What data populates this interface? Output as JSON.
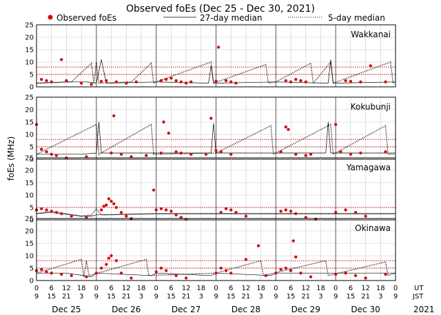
{
  "chart_data": {
    "type": "scatter",
    "title": "Observed foEs (Dec 25 - Dec 30, 2021)",
    "ylabel": "foEs (MHz)",
    "year_label": "2021",
    "time_axis_labels": {
      "ut": "UT",
      "jst": "JST"
    },
    "ylim": [
      0,
      25
    ],
    "yticks": [
      0,
      5,
      10,
      15,
      20,
      25
    ],
    "grid": true,
    "legend": {
      "placement": "top",
      "observed": "Observed foEs",
      "median27": "27-day median",
      "median5": "5-day median"
    },
    "colors": {
      "observed": "#d01010",
      "median27": "#000000",
      "median5": "#000000",
      "grid": "#c8c8c8"
    },
    "days": [
      "Dec 25",
      "Dec 26",
      "Dec 27",
      "Dec 28",
      "Dec 29",
      "Dec 30"
    ],
    "ut_tick_labels": [
      "0",
      "6",
      "12",
      "18",
      "0",
      "6",
      "12",
      "18",
      "0",
      "6",
      "12",
      "18",
      "0",
      "6",
      "12",
      "18",
      "0",
      "6",
      "12",
      "18",
      "0",
      "6",
      "12",
      "18",
      "0"
    ],
    "jst_tick_labels": [
      "9",
      "15",
      "21",
      "3",
      "9",
      "15",
      "21",
      "3",
      "9",
      "15",
      "21",
      "3",
      "9",
      "15",
      "21",
      "3",
      "9",
      "15",
      "21",
      "3",
      "9",
      "15",
      "21",
      "3",
      "9"
    ],
    "stations": [
      {
        "name": "Wakkanai",
        "observed": [
          [
            2,
            3
          ],
          [
            4,
            2.5
          ],
          [
            6,
            2
          ],
          [
            10,
            11
          ],
          [
            12,
            2.5
          ],
          [
            18,
            1.5
          ],
          [
            22,
            1
          ],
          [
            26,
            2.2
          ],
          [
            28,
            2.5
          ],
          [
            32,
            2
          ],
          [
            36,
            1.5
          ],
          [
            40,
            2
          ],
          [
            50,
            2.5
          ],
          [
            52,
            3
          ],
          [
            54,
            3.5
          ],
          [
            56,
            2.5
          ],
          [
            58,
            2
          ],
          [
            60,
            1.5
          ],
          [
            62,
            2
          ],
          [
            72,
            2.3
          ],
          [
            73,
            16
          ],
          [
            76,
            2.5
          ],
          [
            78,
            2
          ],
          [
            80,
            1.5
          ],
          [
            100,
            2.5
          ],
          [
            102,
            2
          ],
          [
            104,
            3
          ],
          [
            106,
            2.5
          ],
          [
            108,
            2
          ],
          [
            124,
            2.5
          ],
          [
            126,
            2.2
          ],
          [
            130,
            2
          ],
          [
            134,
            8.5
          ],
          [
            140,
            2
          ]
        ],
        "median27": [
          [
            0,
            1.5
          ],
          [
            12,
            2
          ],
          [
            20,
            2
          ],
          [
            24,
            1.5
          ],
          [
            26,
            11
          ],
          [
            28,
            1.5
          ],
          [
            48,
            2
          ],
          [
            69,
            1.5
          ],
          [
            70,
            8.5
          ],
          [
            71,
            1.5
          ],
          [
            96,
            2
          ],
          [
            117,
            1.5
          ],
          [
            118,
            11
          ],
          [
            119,
            1.5
          ],
          [
            144,
            2
          ]
        ],
        "median5": [
          [
            0,
            1.5
          ],
          [
            14,
            2
          ],
          [
            22,
            9.5
          ],
          [
            23,
            1.5
          ],
          [
            24,
            10
          ],
          [
            25,
            1.5
          ],
          [
            38,
            2
          ],
          [
            46,
            9.5
          ],
          [
            47,
            1.5
          ],
          [
            48,
            2
          ],
          [
            70,
            10
          ],
          [
            71,
            1.5
          ],
          [
            92,
            9
          ],
          [
            93,
            1.5
          ],
          [
            96,
            2
          ],
          [
            110,
            9.5
          ],
          [
            111,
            1.5
          ],
          [
            118,
            10
          ],
          [
            119,
            1.5
          ],
          [
            142,
            10
          ],
          [
            143,
            1.5
          ],
          [
            144,
            2
          ]
        ],
        "ref_lines": [
          5,
          8
        ]
      },
      {
        "name": "Kokubunji",
        "observed": [
          [
            0,
            14
          ],
          [
            2,
            4
          ],
          [
            4,
            3
          ],
          [
            6,
            2
          ],
          [
            8,
            1.5
          ],
          [
            12,
            0.5
          ],
          [
            20,
            1
          ],
          [
            30,
            2.5
          ],
          [
            31,
            17.5
          ],
          [
            34,
            2
          ],
          [
            38,
            1
          ],
          [
            44,
            1.5
          ],
          [
            50,
            2.5
          ],
          [
            51,
            15
          ],
          [
            53,
            10.5
          ],
          [
            56,
            3
          ],
          [
            58,
            2.5
          ],
          [
            62,
            2
          ],
          [
            68,
            2
          ],
          [
            70,
            16.5
          ],
          [
            72,
            3.5
          ],
          [
            74,
            3
          ],
          [
            78,
            2
          ],
          [
            98,
            3
          ],
          [
            100,
            13
          ],
          [
            101,
            12
          ],
          [
            104,
            2
          ],
          [
            108,
            1.5
          ],
          [
            110,
            2
          ],
          [
            120,
            14
          ],
          [
            122,
            3
          ],
          [
            126,
            2
          ],
          [
            130,
            2.5
          ],
          [
            140,
            3
          ]
        ],
        "median27": [
          [
            0,
            2
          ],
          [
            18,
            2
          ],
          [
            24,
            2.5
          ],
          [
            25,
            15
          ],
          [
            26,
            2.5
          ],
          [
            48,
            2.5
          ],
          [
            70,
            2.5
          ],
          [
            71,
            14.5
          ],
          [
            72,
            2.5
          ],
          [
            96,
            2.5
          ],
          [
            116,
            2.5
          ],
          [
            117,
            15
          ],
          [
            118,
            2.5
          ],
          [
            144,
            2.5
          ]
        ],
        "median5": [
          [
            0,
            2
          ],
          [
            24,
            14
          ],
          [
            25,
            2
          ],
          [
            46,
            14
          ],
          [
            47,
            2
          ],
          [
            72,
            2.5
          ],
          [
            94,
            13.5
          ],
          [
            95,
            2
          ],
          [
            118,
            14
          ],
          [
            119,
            2
          ],
          [
            140,
            13.5
          ],
          [
            141,
            2
          ],
          [
            144,
            2
          ]
        ],
        "ref_lines": [
          5,
          8
        ]
      },
      {
        "name": "Yamagawa",
        "observed": [
          [
            0,
            4
          ],
          [
            2,
            4.5
          ],
          [
            4,
            4
          ],
          [
            6,
            3.5
          ],
          [
            8,
            3
          ],
          [
            10,
            2.5
          ],
          [
            14,
            1.5
          ],
          [
            20,
            1
          ],
          [
            26,
            4
          ],
          [
            27,
            5.5
          ],
          [
            28,
            6
          ],
          [
            29,
            8.5
          ],
          [
            30,
            7.5
          ],
          [
            31,
            6.5
          ],
          [
            32,
            5
          ],
          [
            34,
            3
          ],
          [
            36,
            1.5
          ],
          [
            38,
            0.5
          ],
          [
            48,
            4
          ],
          [
            50,
            4.5
          ],
          [
            52,
            4
          ],
          [
            54,
            3.5
          ],
          [
            56,
            2
          ],
          [
            58,
            1
          ],
          [
            74,
            3
          ],
          [
            76,
            4.5
          ],
          [
            78,
            4
          ],
          [
            80,
            3
          ],
          [
            84,
            1.5
          ],
          [
            98,
            3.5
          ],
          [
            100,
            4
          ],
          [
            102,
            3.5
          ],
          [
            104,
            2.5
          ],
          [
            108,
            1
          ],
          [
            120,
            3
          ],
          [
            124,
            4
          ],
          [
            128,
            3
          ],
          [
            132,
            1.5
          ],
          [
            47,
            12
          ],
          [
            112,
            0.3
          ],
          [
            60,
            0.2
          ]
        ],
        "median27": [
          [
            0,
            2.5
          ],
          [
            6,
            3
          ],
          [
            18,
            1.5
          ],
          [
            22,
            1.5
          ],
          [
            24,
            2
          ],
          [
            48,
            2.5
          ],
          [
            72,
            2.5
          ],
          [
            96,
            2.5
          ],
          [
            120,
            2.5
          ],
          [
            144,
            2.5
          ]
        ],
        "median5": [
          [
            0,
            2.5
          ],
          [
            6,
            3.5
          ],
          [
            18,
            1.5
          ],
          [
            22,
            2
          ],
          [
            24,
            4.5
          ],
          [
            26,
            2
          ],
          [
            48,
            2.5
          ],
          [
            72,
            2.5
          ],
          [
            96,
            2.5
          ],
          [
            120,
            2.5
          ],
          [
            144,
            2.5
          ]
        ],
        "ref_lines": [
          5
        ]
      },
      {
        "name": "Okinawa",
        "observed": [
          [
            0,
            4
          ],
          [
            2,
            4.5
          ],
          [
            4,
            3.5
          ],
          [
            6,
            3
          ],
          [
            10,
            2.5
          ],
          [
            14,
            2
          ],
          [
            20,
            1.5
          ],
          [
            24,
            3
          ],
          [
            26,
            5
          ],
          [
            28,
            6.5
          ],
          [
            29,
            9
          ],
          [
            30,
            10
          ],
          [
            32,
            8
          ],
          [
            34,
            3
          ],
          [
            38,
            1
          ],
          [
            48,
            3.5
          ],
          [
            50,
            5
          ],
          [
            52,
            4
          ],
          [
            56,
            2
          ],
          [
            60,
            1
          ],
          [
            72,
            3
          ],
          [
            74,
            5
          ],
          [
            76,
            4
          ],
          [
            78,
            3
          ],
          [
            84,
            8.5
          ],
          [
            89,
            14
          ],
          [
            92,
            2
          ],
          [
            96,
            3
          ],
          [
            98,
            4.5
          ],
          [
            100,
            5
          ],
          [
            102,
            4
          ],
          [
            103,
            16
          ],
          [
            104,
            9.5
          ],
          [
            106,
            3
          ],
          [
            110,
            1.5
          ],
          [
            120,
            2.5
          ],
          [
            124,
            3
          ],
          [
            128,
            2
          ],
          [
            132,
            1
          ],
          [
            140,
            2.5
          ]
        ],
        "median27": [
          [
            0,
            3
          ],
          [
            12,
            3
          ],
          [
            22,
            1.5
          ],
          [
            24,
            3
          ],
          [
            46,
            2
          ],
          [
            48,
            3
          ],
          [
            70,
            2
          ],
          [
            72,
            3
          ],
          [
            94,
            2
          ],
          [
            96,
            3
          ],
          [
            120,
            3
          ],
          [
            144,
            3
          ]
        ],
        "median5": [
          [
            0,
            3
          ],
          [
            18,
            8.5
          ],
          [
            19,
            1.5
          ],
          [
            20,
            8
          ],
          [
            21,
            2
          ],
          [
            44,
            8.5
          ],
          [
            45,
            2
          ],
          [
            72,
            3
          ],
          [
            90,
            8
          ],
          [
            91,
            2
          ],
          [
            116,
            8
          ],
          [
            117,
            2
          ],
          [
            140,
            7.5
          ],
          [
            141,
            2
          ],
          [
            144,
            3
          ]
        ],
        "ref_lines": [
          5,
          8
        ]
      }
    ]
  }
}
